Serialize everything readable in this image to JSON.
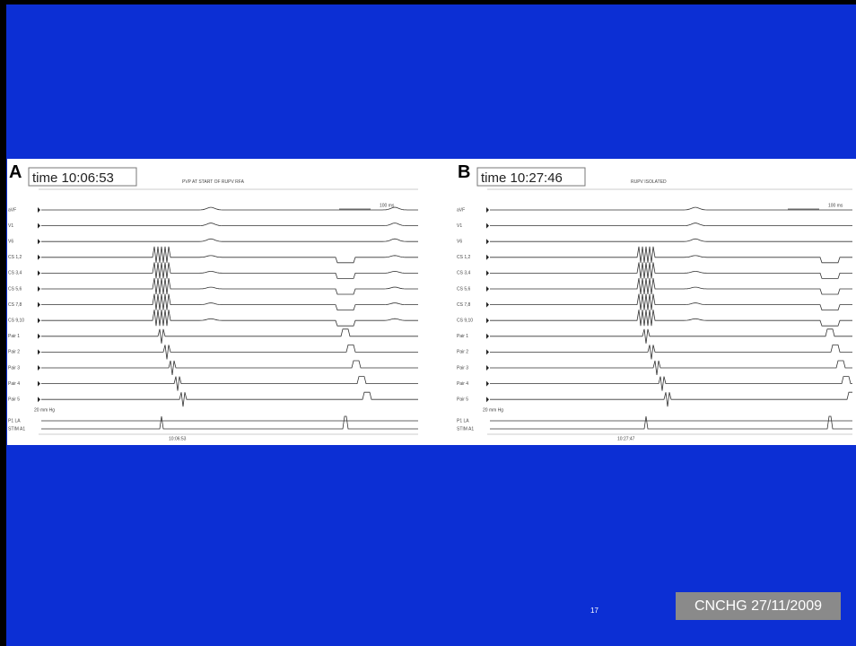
{
  "slide": {
    "panels": [
      {
        "letter": "A",
        "time": "time 10:06:53",
        "caption": "PVP AT START OF RUPV RFA",
        "scale": "100 ms",
        "channels": [
          "aVF",
          "V1",
          "V6",
          "CS 1,2",
          "CS 3,4",
          "CS 5,6",
          "CS 7,8",
          "CS 9,10",
          "Pair 1",
          "Pair 2",
          "Pair 3",
          "Pair 4",
          "Pair 5"
        ],
        "pressure": "20 mm Hg",
        "lower_channels": [
          "P1 LA",
          "STIM A1"
        ],
        "timestamp": "10:06:53"
      },
      {
        "letter": "B",
        "time": "time 10:27:46",
        "caption": "RUPV ISOLATED",
        "scale": "100 ms",
        "channels": [
          "aVF",
          "V1",
          "V6",
          "CS 1,2",
          "CS 3,4",
          "CS 5,6",
          "CS 7,8",
          "CS 9,10",
          "Pair 1",
          "Pair 2",
          "Pair 3",
          "Pair 4",
          "Pair 5"
        ],
        "pressure": "20 mm Hg",
        "lower_channels": [
          "P1 LA",
          "STIM A1"
        ],
        "timestamp": "10:27:47"
      }
    ],
    "page_number": "17",
    "footer": "CNCHG 27/11/2009"
  }
}
